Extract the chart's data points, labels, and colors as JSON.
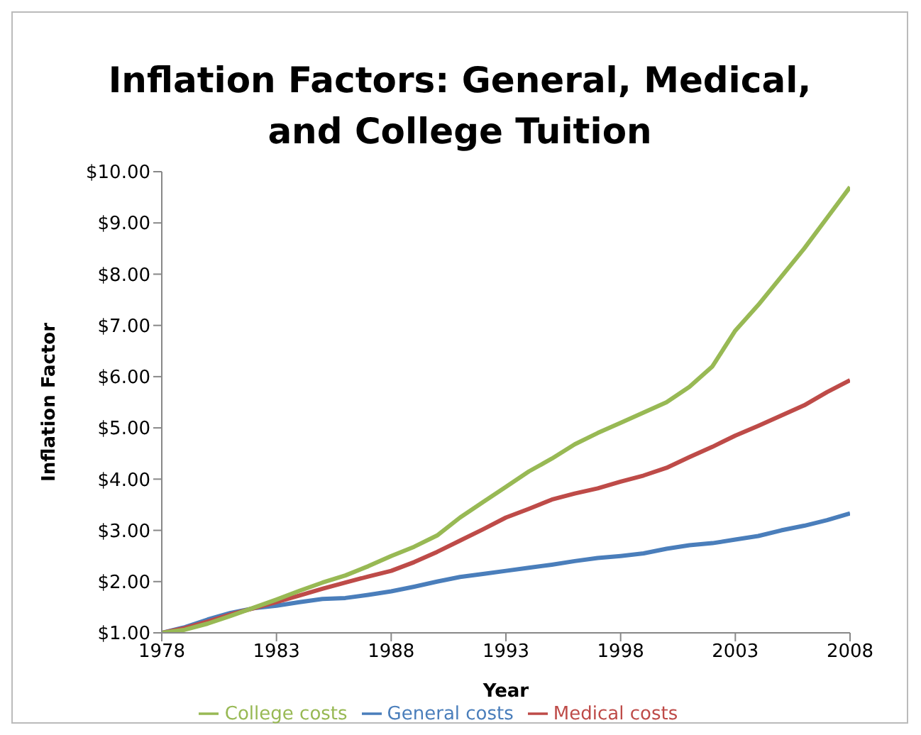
{
  "chart_data": {
    "type": "line",
    "title": "Inflation Factors:  General, Medical, and College Tuition",
    "xlabel": "Year",
    "ylabel": "Inflation Factor",
    "x": [
      1978,
      1979,
      1980,
      1981,
      1982,
      1983,
      1984,
      1985,
      1986,
      1987,
      1988,
      1989,
      1990,
      1991,
      1992,
      1993,
      1994,
      1995,
      1996,
      1997,
      1998,
      1999,
      2000,
      2001,
      2002,
      2003,
      2004,
      2005,
      2006,
      2007,
      2008
    ],
    "series": [
      {
        "name": "General costs",
        "color": "#4a7ebb",
        "values": [
          1.0,
          1.11,
          1.26,
          1.39,
          1.48,
          1.53,
          1.6,
          1.66,
          1.68,
          1.74,
          1.81,
          1.9,
          2.0,
          2.09,
          2.15,
          2.21,
          2.27,
          2.33,
          2.4,
          2.46,
          2.5,
          2.55,
          2.64,
          2.71,
          2.75,
          2.82,
          2.89,
          3.0,
          3.09,
          3.2,
          3.33
        ]
      },
      {
        "name": "Medical costs",
        "color": "#be4b48",
        "values": [
          1.0,
          1.09,
          1.22,
          1.36,
          1.48,
          1.6,
          1.73,
          1.86,
          1.98,
          2.1,
          2.21,
          2.38,
          2.58,
          2.8,
          3.02,
          3.25,
          3.42,
          3.6,
          3.72,
          3.82,
          3.95,
          4.07,
          4.22,
          4.43,
          4.63,
          4.85,
          5.04,
          5.24,
          5.44,
          5.7,
          5.93
        ]
      },
      {
        "name": "College costs",
        "color": "#98b954",
        "values": [
          1.0,
          1.06,
          1.18,
          1.33,
          1.49,
          1.65,
          1.82,
          1.98,
          2.12,
          2.3,
          2.5,
          2.68,
          2.9,
          3.25,
          3.55,
          3.85,
          4.15,
          4.4,
          4.68,
          4.9,
          5.1,
          5.3,
          5.5,
          5.8,
          6.2,
          6.9,
          7.4,
          7.95,
          8.5,
          9.1,
          9.7
        ]
      }
    ],
    "xlim": [
      1978,
      2008
    ],
    "xticks": [
      1978,
      1983,
      1988,
      1993,
      1998,
      2003,
      2008
    ],
    "ylim": [
      1,
      10
    ],
    "yticks": [
      {
        "value": 1,
        "label": "$1.00"
      },
      {
        "value": 2,
        "label": "$2.00"
      },
      {
        "value": 3,
        "label": "$3.00"
      },
      {
        "value": 4,
        "label": "$4.00"
      },
      {
        "value": 5,
        "label": "$5.00"
      },
      {
        "value": 6,
        "label": "$6.00"
      },
      {
        "value": 7,
        "label": "$7.00"
      },
      {
        "value": 8,
        "label": "$8.00"
      },
      {
        "value": 9,
        "label": "$9.00"
      },
      {
        "value": 10,
        "label": "$10.00"
      }
    ],
    "grid": false,
    "legend": "bottom",
    "marker": "none",
    "line_style": "solid"
  }
}
